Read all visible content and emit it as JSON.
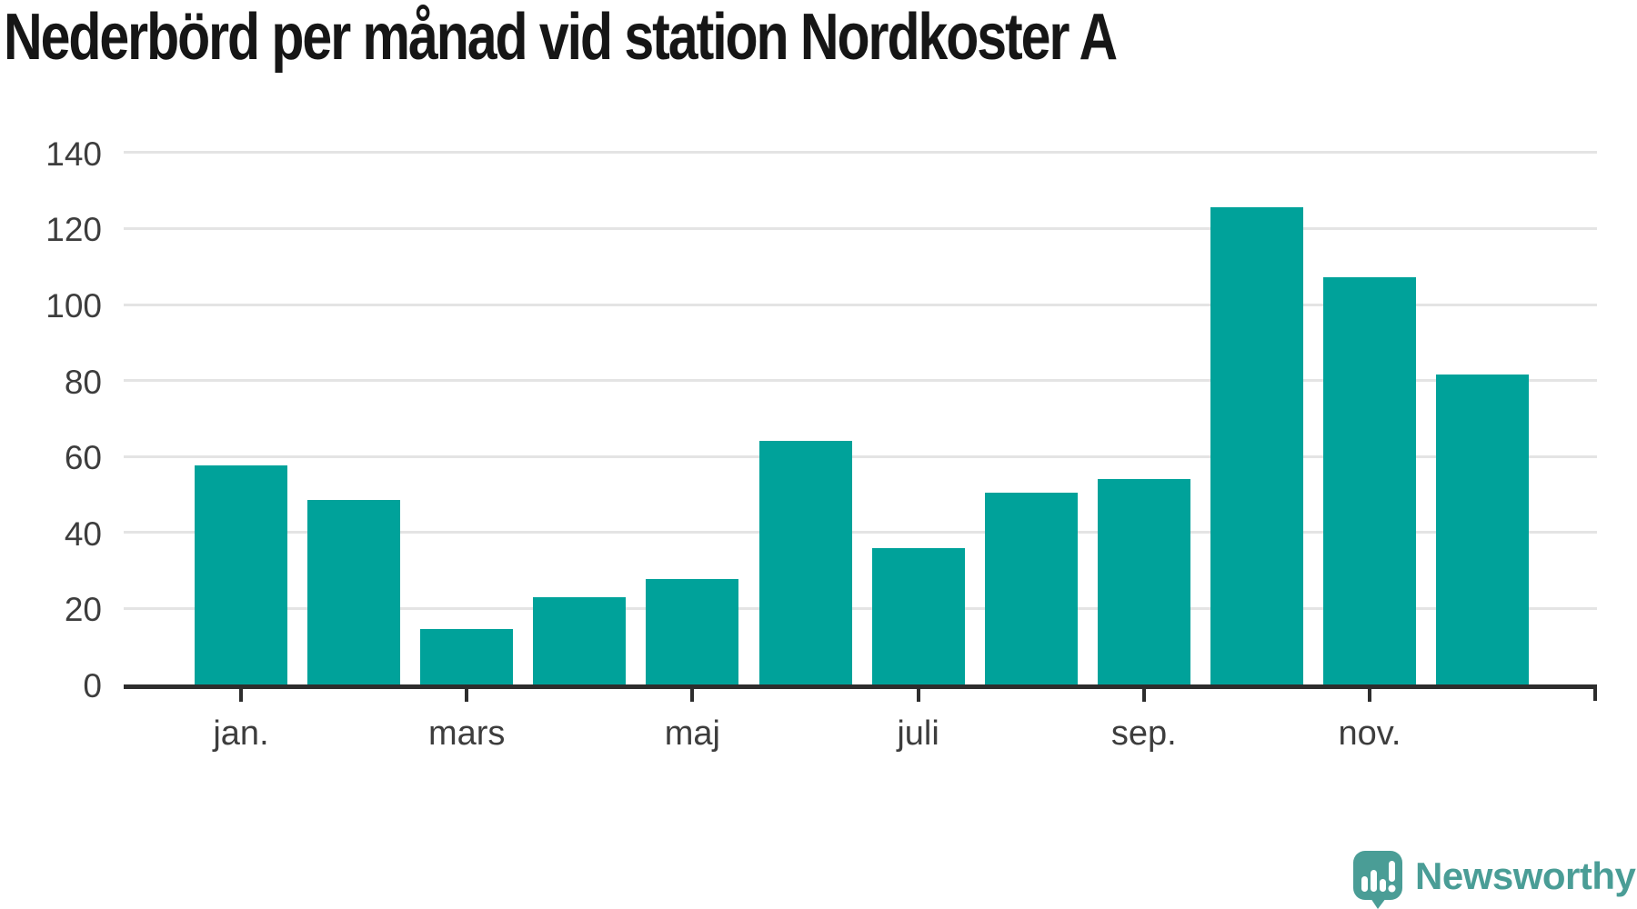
{
  "title": "Nederbörd per månad vid station Nordkoster A",
  "branding": {
    "logo_text": "Newsworthy",
    "logo_color": "#4A9D96",
    "logo_icon": "newsworthy-speech-bubble-bar-chart-icon"
  },
  "chart_data": {
    "type": "bar",
    "title": "Nederbörd per månad vid station Nordkoster A",
    "values": [
      57.6,
      48.5,
      14.5,
      23.0,
      27.8,
      64.0,
      35.8,
      50.5,
      54.0,
      125.7,
      107.2,
      81.5
    ],
    "bars_count": 12,
    "x_ticks": [
      {
        "label": "jan.",
        "month_index": 0
      },
      {
        "label": "mars",
        "month_index": 2
      },
      {
        "label": "maj",
        "month_index": 4
      },
      {
        "label": "juli",
        "month_index": 6
      },
      {
        "label": "sep.",
        "month_index": 8
      },
      {
        "label": "nov.",
        "month_index": 10
      }
    ],
    "y_ticks": [
      0,
      20,
      40,
      60,
      80,
      100,
      120,
      140
    ],
    "ylim": [
      0,
      140
    ],
    "bar_color": "#00A29A",
    "grid": true,
    "legend": "none",
    "xlabel": "",
    "ylabel": ""
  }
}
